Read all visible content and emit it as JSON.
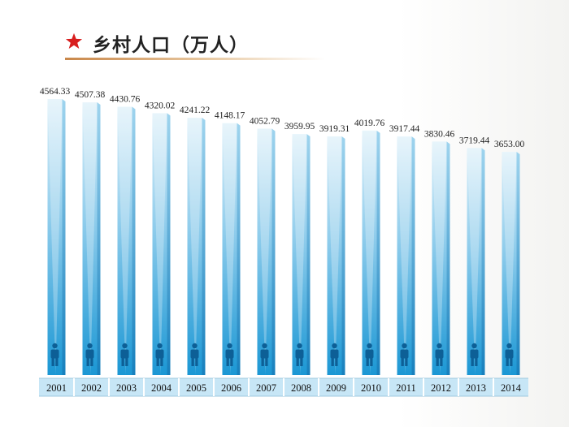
{
  "title": "乡村人口（万人）",
  "colors": {
    "star": "#d81e1e",
    "bar_top": "#d8eef9",
    "bar_bottom": "#1e9ad6",
    "rule": "#c9874a",
    "year_band": "#c7e6f6"
  },
  "chart_data": {
    "type": "bar",
    "categories": [
      "2001",
      "2002",
      "2003",
      "2004",
      "2005",
      "2006",
      "2007",
      "2008",
      "2009",
      "2010",
      "2011",
      "2012",
      "2013",
      "2014"
    ],
    "values": [
      4564.33,
      4507.38,
      4430.76,
      4320.02,
      4241.22,
      4148.17,
      4052.79,
      3959.95,
      3919.31,
      4019.76,
      3917.44,
      3830.46,
      3719.44,
      3653.0
    ],
    "value_labels": [
      "4564.33",
      "4507.38",
      "4430.76",
      "4320.02",
      "4241.22",
      "4148.17",
      "4052.79",
      "3959.95",
      "3919.31",
      "4019.76",
      "3917.44",
      "3830.46",
      "3719.44",
      "3653.00"
    ],
    "title": "乡村人口（万人）",
    "xlabel": "",
    "ylabel": "",
    "grid": false,
    "legend": "none",
    "icon": "person-icon"
  }
}
